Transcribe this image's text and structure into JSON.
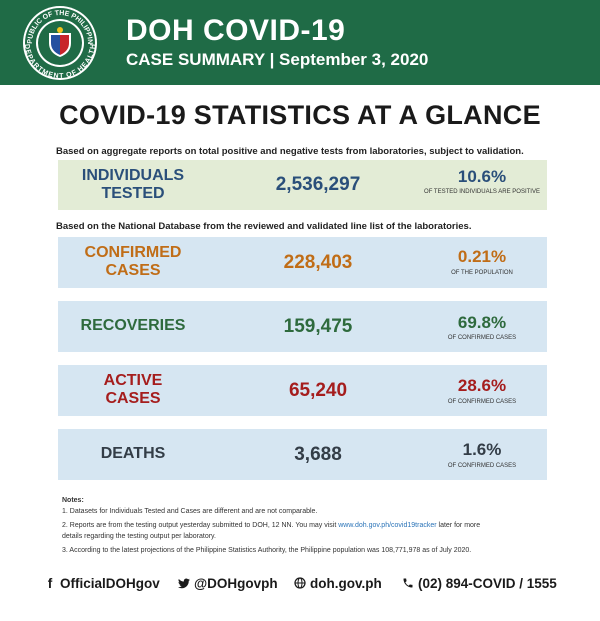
{
  "header": {
    "title": "DOH COVID-19",
    "subtitle": "CASE SUMMARY | September 3, 2020",
    "seal_text_top": "REPUBLIC OF THE PHILIPPINES",
    "seal_text_bottom": "DEPARTMENT OF HEALTH"
  },
  "main_title": "COVID-19 STATISTICS AT A GLANCE",
  "note_aggregate": "Based on aggregate reports on total positive and negative tests from laboratories, subject to validation.",
  "note_database": "Based on the National Database from the reviewed and validated line list of the laboratories.",
  "stats": {
    "tested": {
      "label_1": "INDIVIDUALS",
      "label_2": "TESTED",
      "value": "2,536,297",
      "percent": "10.6%",
      "caption": "OF TESTED INDIVIDUALS ARE POSITIVE"
    },
    "confirmed": {
      "label_1": "CONFIRMED",
      "label_2": "CASES",
      "value": "228,403",
      "percent": "0.21%",
      "caption": "OF THE POPULATION"
    },
    "recoveries": {
      "label_1": "RECOVERIES",
      "value": "159,475",
      "percent": "69.8%",
      "caption": "OF CONFIRMED CASES"
    },
    "active": {
      "label_1": "ACTIVE",
      "label_2": "CASES",
      "value": "65,240",
      "percent": "28.6%",
      "caption": "OF CONFIRMED CASES"
    },
    "deaths": {
      "label_1": "DEATHS",
      "value": "3,688",
      "percent": "1.6%",
      "caption": "OF CONFIRMED CASES"
    }
  },
  "notes": {
    "heading": "Notes:",
    "n1": "1. Datasets for Individuals Tested and Cases are different and are not comparable.",
    "n2_a": "2.  Reports are from the testing output yesterday submitted to DOH, 12 NN. You may visit",
    "n2_link": "www.doh.gov.ph/covid19tracker",
    "n2_b": "later for more",
    "n2_c": "details regarding the testing output per laboratory.",
    "n3": "3. According to the latest projections of the Philippine Statistics Authority, the Philippine population was 108,771,978 as of July 2020."
  },
  "footer": {
    "facebook": "OfficialDOHgov",
    "twitter": "@DOHgovph",
    "website": "doh.gov.ph",
    "phone": "(02) 894-COVID  /  1555"
  },
  "colors": {
    "header_bg": "#1f6b46",
    "tested_bg": "#e3ecd6",
    "panel_bg": "#d6e6f2",
    "blue": "#2a4f7a",
    "orange": "#c06d17",
    "green": "#2e6a3d",
    "red": "#a51d1d",
    "dark": "#333d47"
  }
}
